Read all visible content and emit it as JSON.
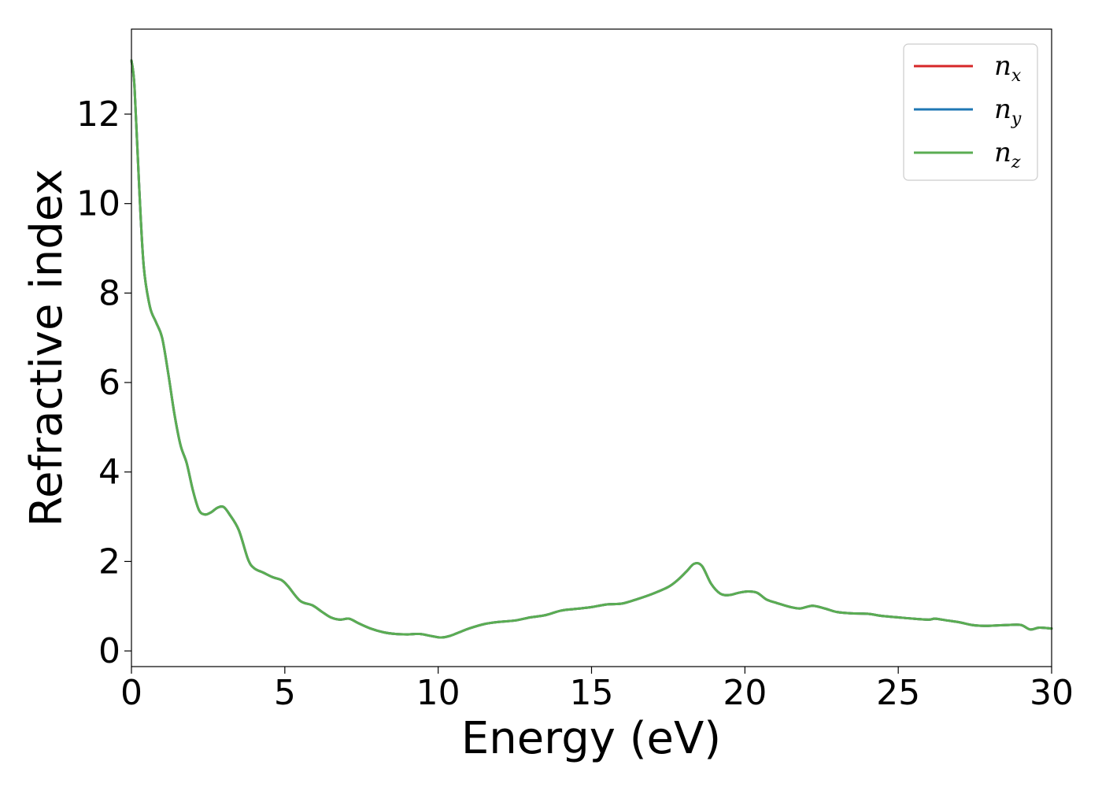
{
  "chart_data": {
    "type": "line",
    "title": "",
    "xlabel": "Energy (eV)",
    "ylabel": "Refractive index",
    "xlim": [
      0,
      30
    ],
    "ylim": [
      -0.35,
      13.9
    ],
    "xticks": [
      0,
      5,
      10,
      15,
      20,
      25,
      30
    ],
    "yticks": [
      0,
      2,
      4,
      6,
      8,
      10,
      12
    ],
    "grid": false,
    "legend": "top-right",
    "x": [
      0,
      0.1,
      0.25,
      0.4,
      0.6,
      0.8,
      1.0,
      1.2,
      1.4,
      1.6,
      1.8,
      2.0,
      2.2,
      2.4,
      2.6,
      2.8,
      3.0,
      3.2,
      3.5,
      3.8,
      4.0,
      4.3,
      4.6,
      4.9,
      5.1,
      5.5,
      5.9,
      6.2,
      6.5,
      6.8,
      7.1,
      7.4,
      7.8,
      8.2,
      8.6,
      9.0,
      9.4,
      9.8,
      10.1,
      10.4,
      10.7,
      11.0,
      11.5,
      12.0,
      12.5,
      13.0,
      13.5,
      14.0,
      14.5,
      15.0,
      15.5,
      16.0,
      16.5,
      17.0,
      17.5,
      17.8,
      18.1,
      18.35,
      18.6,
      18.9,
      19.2,
      19.5,
      19.8,
      20.1,
      20.4,
      20.7,
      21.0,
      21.5,
      21.8,
      22.2,
      22.6,
      23.0,
      23.5,
      24.0,
      24.5,
      25.0,
      25.5,
      26.0,
      26.2,
      26.6,
      27.0,
      27.4,
      27.8,
      28.2,
      28.6,
      29.0,
      29.3,
      29.6,
      30.0
    ],
    "series": [
      {
        "name": "x",
        "color": "#d62728",
        "values": [
          13.2,
          12.6,
          10.4,
          8.6,
          7.7,
          7.35,
          7.0,
          6.2,
          5.3,
          4.6,
          4.2,
          3.6,
          3.15,
          3.05,
          3.1,
          3.2,
          3.22,
          3.05,
          2.7,
          2.05,
          1.85,
          1.75,
          1.65,
          1.58,
          1.45,
          1.12,
          1.02,
          0.88,
          0.75,
          0.7,
          0.72,
          0.62,
          0.5,
          0.42,
          0.38,
          0.37,
          0.38,
          0.33,
          0.3,
          0.34,
          0.42,
          0.5,
          0.6,
          0.65,
          0.68,
          0.75,
          0.8,
          0.9,
          0.94,
          0.98,
          1.04,
          1.06,
          1.16,
          1.28,
          1.43,
          1.58,
          1.78,
          1.95,
          1.9,
          1.5,
          1.28,
          1.25,
          1.3,
          1.33,
          1.3,
          1.15,
          1.08,
          0.98,
          0.95,
          1.01,
          0.95,
          0.87,
          0.84,
          0.83,
          0.78,
          0.75,
          0.72,
          0.7,
          0.72,
          0.68,
          0.64,
          0.58,
          0.56,
          0.57,
          0.58,
          0.58,
          0.48,
          0.52,
          0.5
        ]
      },
      {
        "name": "y",
        "color": "#1f77b4",
        "values": [
          13.2,
          12.6,
          10.4,
          8.6,
          7.7,
          7.35,
          7.0,
          6.2,
          5.3,
          4.6,
          4.2,
          3.6,
          3.15,
          3.05,
          3.1,
          3.2,
          3.22,
          3.05,
          2.7,
          2.05,
          1.85,
          1.75,
          1.65,
          1.58,
          1.45,
          1.12,
          1.02,
          0.88,
          0.75,
          0.7,
          0.72,
          0.62,
          0.5,
          0.42,
          0.38,
          0.37,
          0.38,
          0.33,
          0.3,
          0.34,
          0.42,
          0.5,
          0.6,
          0.65,
          0.68,
          0.75,
          0.8,
          0.9,
          0.94,
          0.98,
          1.04,
          1.06,
          1.16,
          1.28,
          1.43,
          1.58,
          1.78,
          1.95,
          1.9,
          1.5,
          1.28,
          1.25,
          1.3,
          1.33,
          1.3,
          1.15,
          1.08,
          0.98,
          0.95,
          1.01,
          0.95,
          0.87,
          0.84,
          0.83,
          0.78,
          0.75,
          0.72,
          0.7,
          0.72,
          0.68,
          0.64,
          0.58,
          0.56,
          0.57,
          0.58,
          0.58,
          0.48,
          0.52,
          0.5
        ]
      },
      {
        "name": "z",
        "color": "#5aad52",
        "values": [
          13.2,
          12.6,
          10.4,
          8.6,
          7.7,
          7.35,
          7.0,
          6.2,
          5.3,
          4.6,
          4.2,
          3.6,
          3.15,
          3.05,
          3.1,
          3.2,
          3.22,
          3.05,
          2.7,
          2.05,
          1.85,
          1.75,
          1.65,
          1.58,
          1.45,
          1.12,
          1.02,
          0.88,
          0.75,
          0.7,
          0.72,
          0.62,
          0.5,
          0.42,
          0.38,
          0.37,
          0.38,
          0.33,
          0.3,
          0.34,
          0.42,
          0.5,
          0.6,
          0.65,
          0.68,
          0.75,
          0.8,
          0.9,
          0.94,
          0.98,
          1.04,
          1.06,
          1.16,
          1.28,
          1.43,
          1.58,
          1.78,
          1.95,
          1.9,
          1.5,
          1.28,
          1.25,
          1.3,
          1.33,
          1.3,
          1.15,
          1.08,
          0.98,
          0.95,
          1.01,
          0.95,
          0.87,
          0.84,
          0.83,
          0.78,
          0.75,
          0.72,
          0.7,
          0.72,
          0.68,
          0.64,
          0.58,
          0.56,
          0.57,
          0.58,
          0.58,
          0.48,
          0.52,
          0.5
        ]
      }
    ],
    "legend_entries": [
      {
        "base": "n",
        "sub": "x",
        "color": "#d62728"
      },
      {
        "base": "n",
        "sub": "y",
        "color": "#1f77b4"
      },
      {
        "base": "n",
        "sub": "z",
        "color": "#5aad52"
      }
    ]
  }
}
